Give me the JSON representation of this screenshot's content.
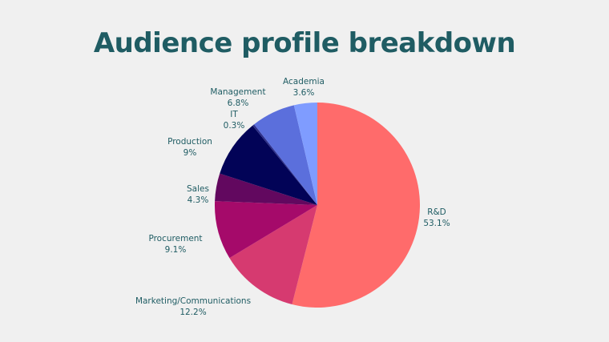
{
  "chart_data": {
    "type": "pie",
    "title": "Audience profile breakdown",
    "slices": [
      {
        "label": "R&D",
        "value": 53.1,
        "value_label": "53.1%",
        "color": "#ff6b6b"
      },
      {
        "label": "Marketing/Communications",
        "value": 12.2,
        "value_label": "12.2%",
        "color": "#d63a70"
      },
      {
        "label": "Procurement",
        "value": 9.1,
        "value_label": "9.1%",
        "color": "#a50a6a"
      },
      {
        "label": "Sales",
        "value": 4.3,
        "value_label": "4.3%",
        "color": "#62085f"
      },
      {
        "label": "Production",
        "value": 9,
        "value_label": "9%",
        "color": "#020357"
      },
      {
        "label": "IT",
        "value": 0.3,
        "value_label": "0.3%",
        "color": "#2d2f8a"
      },
      {
        "label": "Management",
        "value": 6.8,
        "value_label": "6.8%",
        "color": "#5b6fdc"
      },
      {
        "label": "Academia",
        "value": 3.6,
        "value_label": "3.6%",
        "color": "#7f9cff"
      }
    ],
    "start": "top",
    "direction": "clockwise",
    "legend": "none"
  },
  "colors": {
    "background": "#f0f0f0",
    "title": "#1f5c63",
    "label_text": "#1f5c63"
  }
}
